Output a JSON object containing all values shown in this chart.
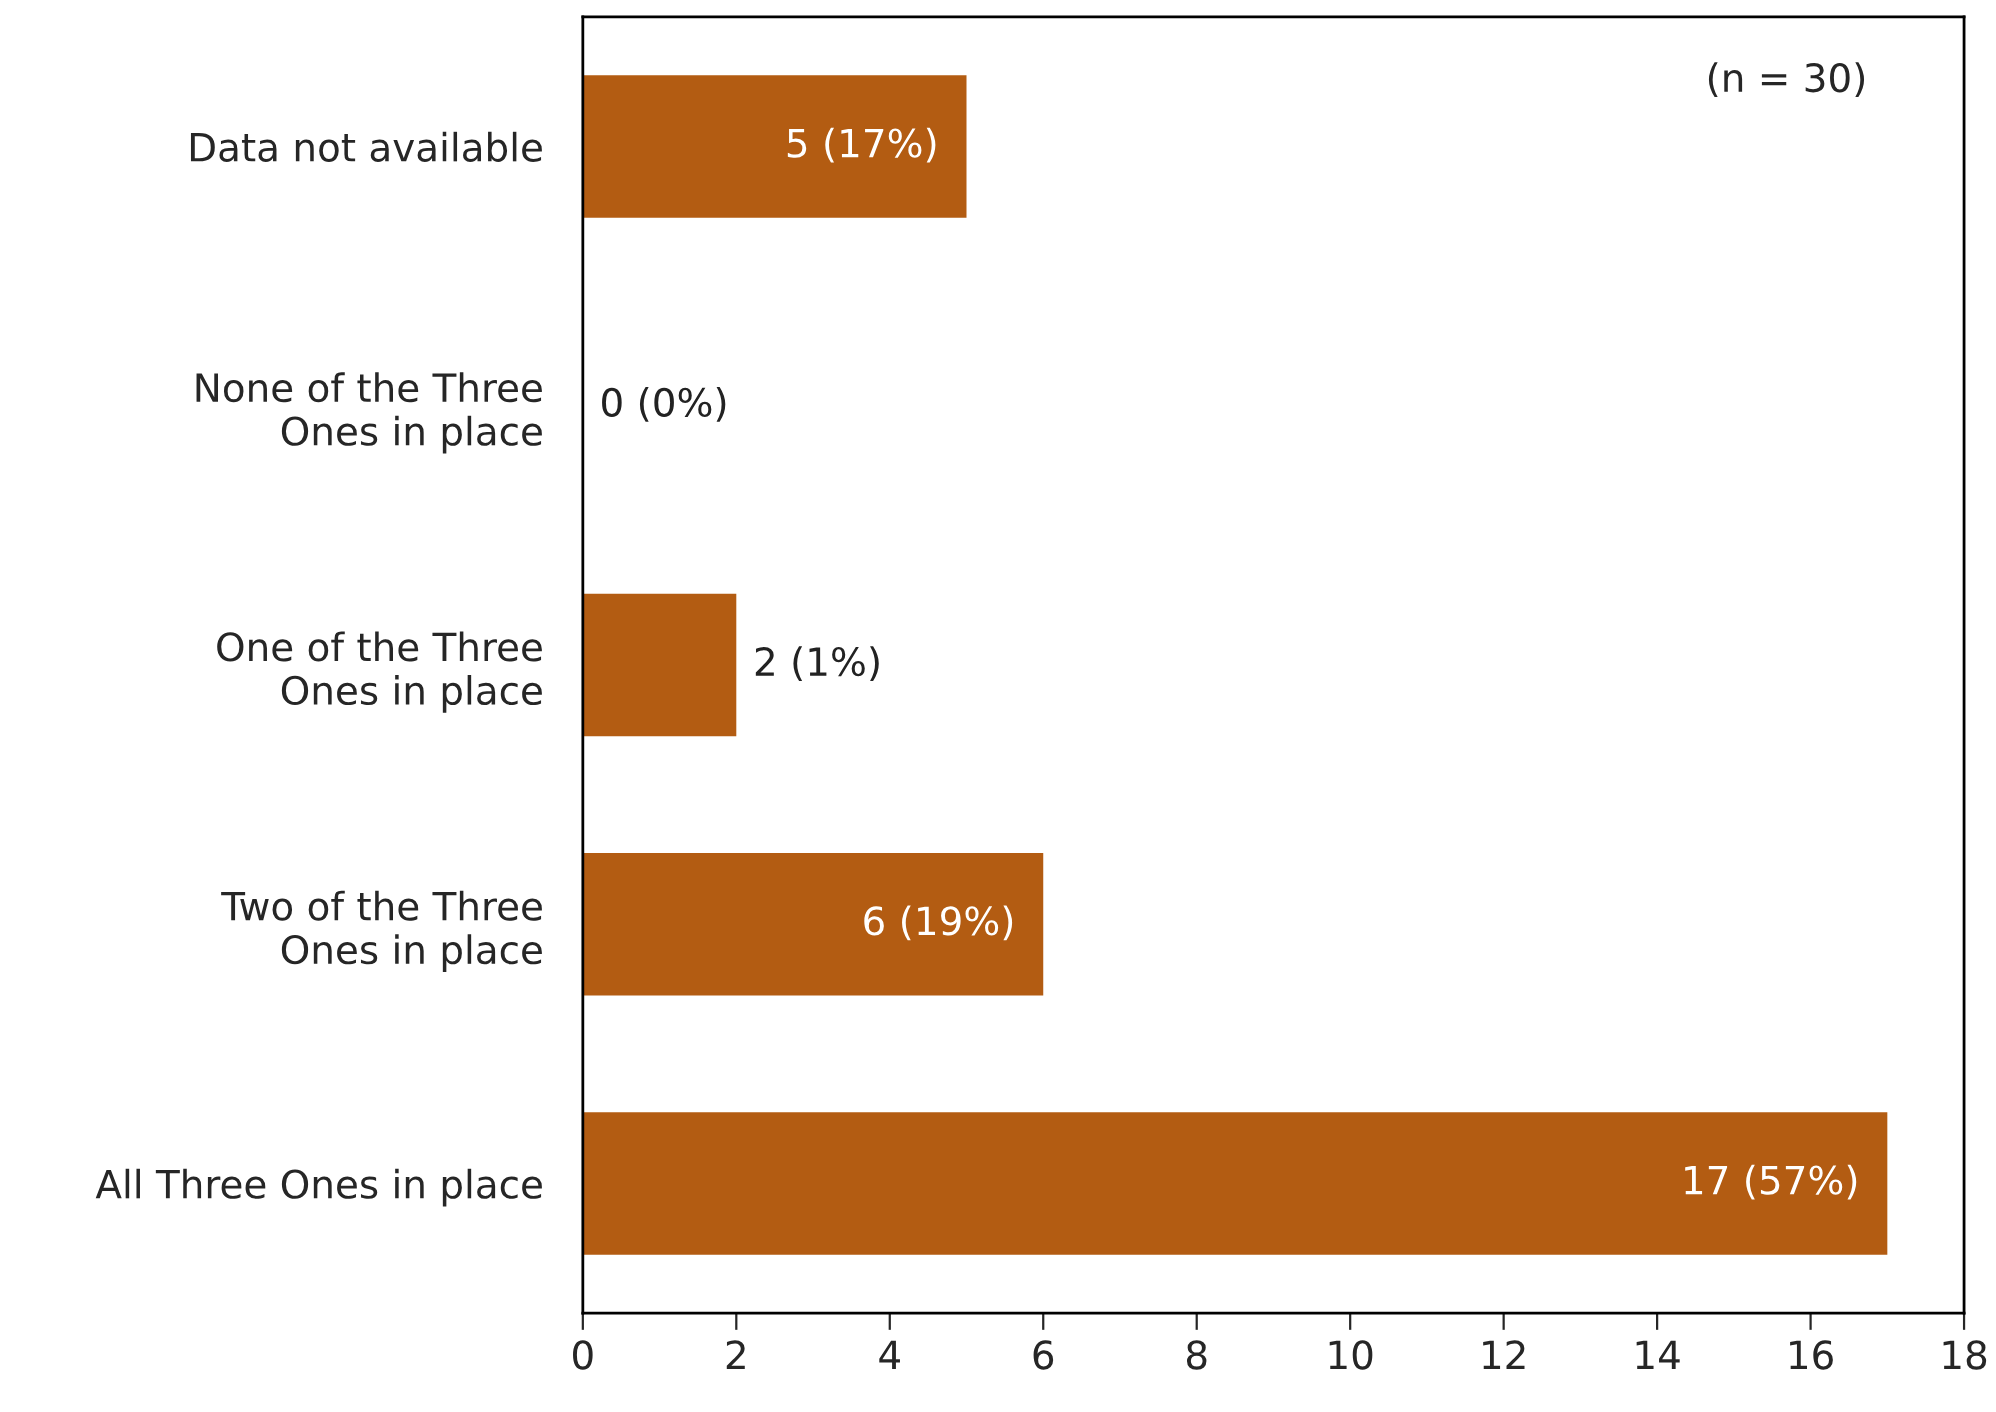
{
  "chart_data": {
    "type": "bar",
    "orientation": "horizontal",
    "categories": [
      "Data not available",
      "None of the Three\nOnes in place",
      "One of the Three\nOnes in place",
      "Two of the Three\nOnes in place",
      "All Three Ones in place"
    ],
    "values": [
      5,
      0,
      2,
      6,
      17
    ],
    "value_labels": [
      "5 (17%)",
      "0 (0%)",
      "2 (1%)",
      "6 (19%)",
      "17 (57%)"
    ],
    "color": "#b35c12",
    "xlim": [
      0,
      18
    ],
    "xticks": [
      0,
      2,
      4,
      6,
      8,
      10,
      12,
      14,
      16,
      18
    ],
    "annotations": [
      "(n = 30)"
    ],
    "grid": false,
    "legend": false
  }
}
